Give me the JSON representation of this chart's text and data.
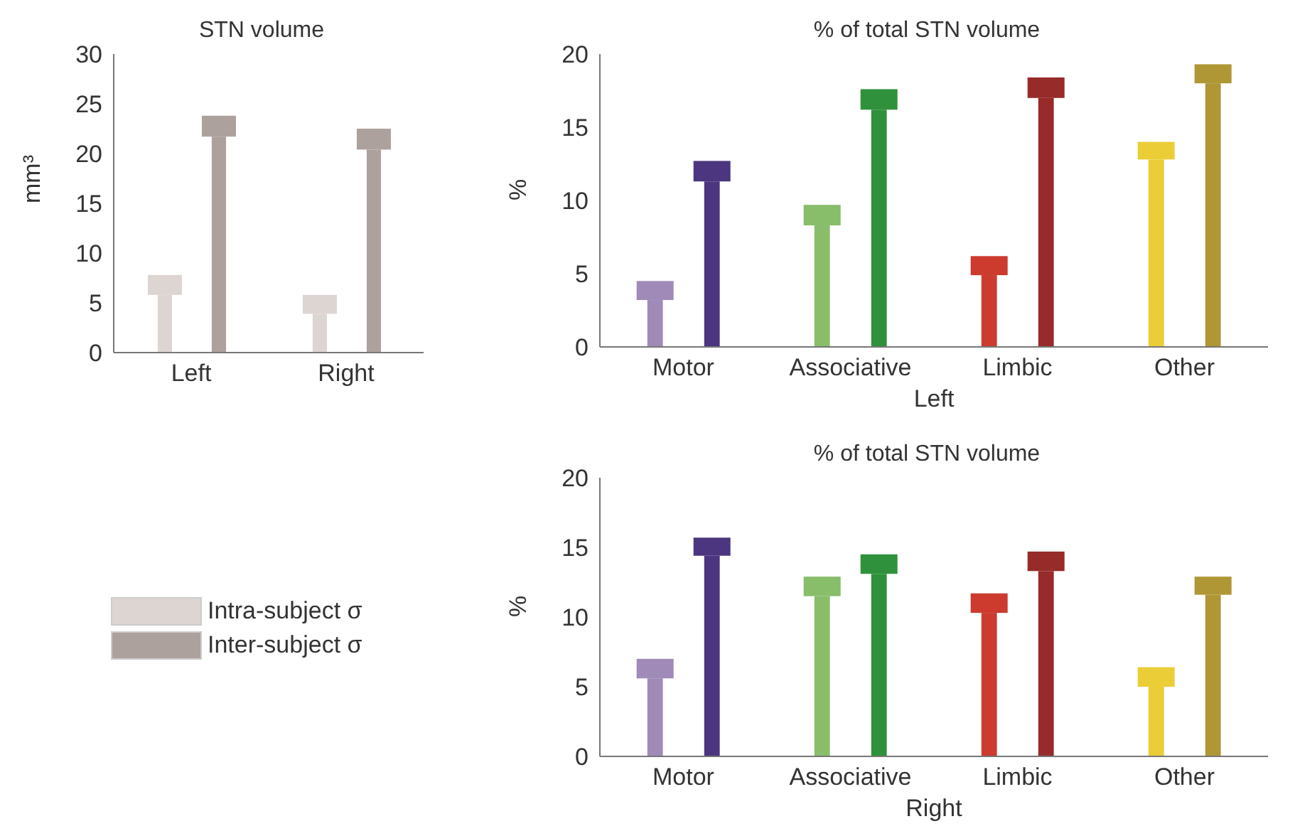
{
  "chart_data": [
    {
      "type": "bar",
      "title": "STN volume",
      "ylabel": "mm³",
      "categories": [
        "Left",
        "Right"
      ],
      "legend": "bottom",
      "ylim": [
        0,
        30
      ],
      "yticks": [
        0,
        5,
        10,
        15,
        20,
        25,
        30
      ],
      "series": [
        {
          "color": "#ddd5d2",
          "values": [
            5.8,
            3.9
          ]
        },
        {
          "color": "#ada19e",
          "values": [
            21.7,
            20.4
          ]
        },
        {
          "name": "Intra-subject σ",
          "color": "#ddd5d2",
          "values": [
            2.0,
            1.9
          ],
          "base": [
            5.8,
            3.9
          ]
        },
        {
          "name": "Inter-subject σ",
          "color": "#ada19e",
          "values": [
            2.1,
            2.1
          ],
          "base": [
            21.7,
            20.4
          ]
        }
      ]
    },
    {
      "type": "bar",
      "title": "% of total STN volume",
      "ylabel": "%",
      "xlabel": "Left",
      "categories": [
        "Motor",
        "Associative",
        "Limbic",
        "Other"
      ],
      "ylim": [
        0,
        20
      ],
      "yticks": [
        0,
        5,
        10,
        15,
        20
      ],
      "series": [
        {
          "colors": [
            "#a08ab7",
            "#88bd6a",
            "#cc3b2e",
            "#ebcd38"
          ],
          "values": [
            3.2,
            8.3,
            4.9,
            12.8
          ]
        },
        {
          "colors": [
            "#4b367f",
            "#2f913b",
            "#962b2a",
            "#af9735"
          ],
          "values": [
            11.3,
            16.2,
            17.0,
            18.0
          ]
        },
        {
          "colors": [
            "#a08ab7",
            "#88bd6a",
            "#cc3b2e",
            "#ebcd38"
          ],
          "values": [
            1.3,
            1.4,
            1.3,
            1.2
          ],
          "base": [
            3.2,
            8.3,
            4.9,
            12.8
          ]
        },
        {
          "colors": [
            "#4b367f",
            "#2f913b",
            "#962b2a",
            "#af9735"
          ],
          "values": [
            1.4,
            1.4,
            1.4,
            1.3
          ],
          "base": [
            11.3,
            16.2,
            17.0,
            18.0
          ]
        }
      ]
    },
    {
      "type": "bar",
      "title": "% of total STN volume",
      "ylabel": "%",
      "xlabel": "Right",
      "categories": [
        "Motor",
        "Associative",
        "Limbic",
        "Other"
      ],
      "ylim": [
        0,
        20
      ],
      "yticks": [
        0,
        5,
        10,
        15,
        20
      ],
      "series": [
        {
          "colors": [
            "#a08ab7",
            "#88bd6a",
            "#cc3b2e",
            "#ebcd38"
          ],
          "values": [
            5.6,
            11.5,
            10.3,
            5.0
          ]
        },
        {
          "colors": [
            "#4b367f",
            "#2f913b",
            "#962b2a",
            "#af9735"
          ],
          "values": [
            14.4,
            13.1,
            13.3,
            11.6
          ]
        },
        {
          "colors": [
            "#a08ab7",
            "#88bd6a",
            "#cc3b2e",
            "#ebcd38"
          ],
          "values": [
            1.4,
            1.4,
            1.4,
            1.4
          ],
          "base": [
            5.6,
            11.5,
            10.3,
            5.0
          ]
        },
        {
          "colors": [
            "#4b367f",
            "#2f913b",
            "#962b2a",
            "#af9735"
          ],
          "values": [
            1.3,
            1.4,
            1.4,
            1.3
          ],
          "base": [
            14.4,
            13.1,
            13.3,
            11.6
          ]
        }
      ]
    }
  ]
}
